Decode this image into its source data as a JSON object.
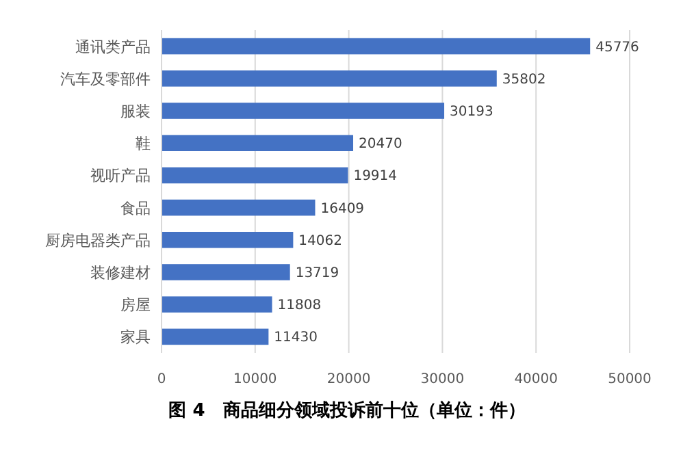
{
  "chart_data": {
    "type": "bar",
    "orientation": "horizontal",
    "title": "图 4　商品细分领域投诉前十位（单位：件）",
    "categories": [
      "通讯类产品",
      "汽车及零部件",
      "服装",
      "鞋",
      "视听产品",
      "食品",
      "厨房电器类产品",
      "装修建材",
      "房屋",
      "家具"
    ],
    "values": [
      45776,
      35802,
      30193,
      20470,
      19914,
      16409,
      14062,
      13719,
      11808,
      11430
    ],
    "color": "#4472c4",
    "xlim": [
      0,
      50000
    ],
    "xticks": [
      0,
      10000,
      20000,
      30000,
      40000,
      50000
    ],
    "grid": "x",
    "data_labels": true
  }
}
